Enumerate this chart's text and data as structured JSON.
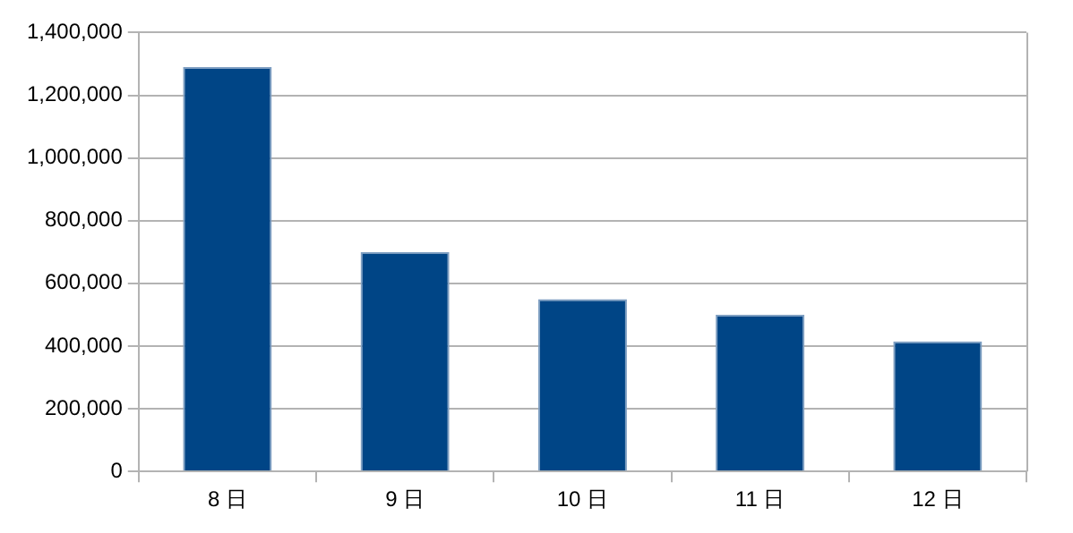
{
  "chart_data": {
    "type": "bar",
    "categories": [
      "8 日",
      "9 日",
      "10 日",
      "11 日",
      "12 日"
    ],
    "values": [
      1290000,
      700000,
      550000,
      500000,
      415000
    ],
    "color": "#004586",
    "ylim": [
      0,
      1400000
    ],
    "yticks": [
      0,
      {
        "value": 200000,
        "label": "200,000"
      },
      {
        "value": 400000,
        "label": "400,000"
      },
      {
        "value": 600000,
        "label": "600,000"
      },
      {
        "value": 800000,
        "label": "800,000"
      },
      {
        "value": 1000000,
        "label": "1,000,000"
      },
      {
        "value": 1200000,
        "label": "1,200,000"
      },
      {
        "value": 1400000,
        "label": "1,400,000"
      }
    ],
    "grid": "y",
    "legend": false
  }
}
